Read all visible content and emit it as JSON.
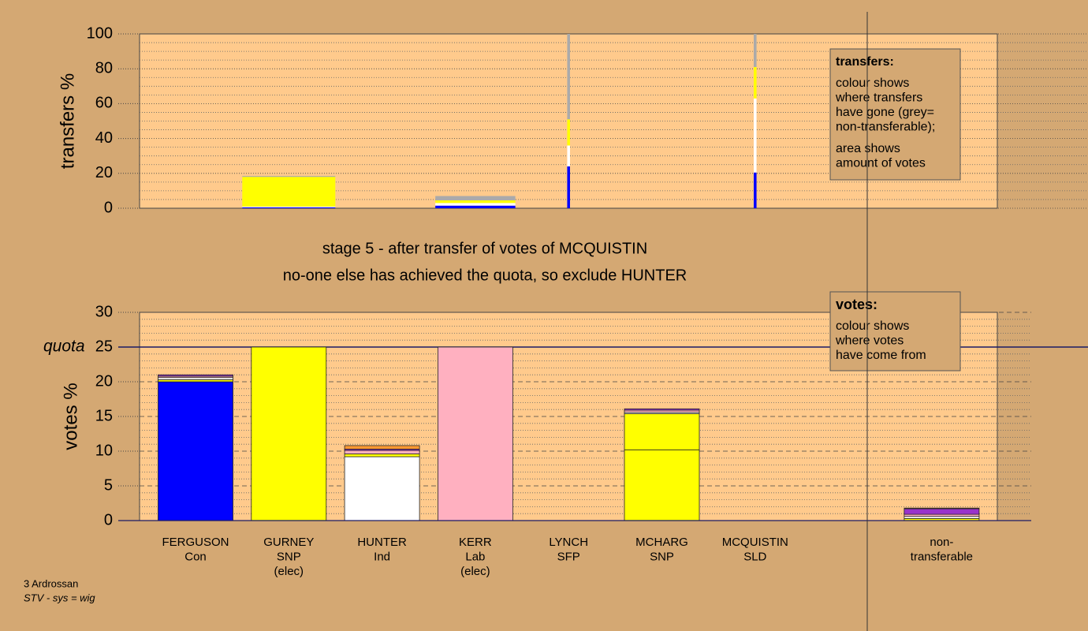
{
  "chart_data": [
    {
      "type": "bar",
      "ylabel": "transfers %",
      "ylim": [
        0,
        100
      ],
      "yticks": [
        0,
        20,
        40,
        60,
        80,
        100
      ],
      "minor_yticks": [
        5,
        10,
        15,
        25,
        30,
        35,
        45,
        50,
        55,
        65,
        70,
        75,
        85,
        90,
        95
      ],
      "widths": [
        0,
        1.0,
        0,
        0.86,
        0.03,
        0,
        0.03,
        null,
        0
      ],
      "series": [
        {
          "color": "#0000ff",
          "values": [
            0,
            0.5,
            0,
            1.5,
            24,
            0,
            20.5,
            null,
            0
          ]
        },
        {
          "color": "#ffffff",
          "values": [
            0,
            0.5,
            0,
            1.5,
            12,
            0,
            42.5,
            null,
            0
          ]
        },
        {
          "color": "#ffff00",
          "values": [
            0,
            17,
            0,
            1.5,
            15,
            0,
            18,
            null,
            0
          ]
        },
        {
          "color": "#aaaaaa",
          "values": [
            0,
            0.5,
            0,
            2.5,
            49,
            0,
            19,
            null,
            0
          ]
        }
      ],
      "note": {
        "title": "transfers:",
        "paragraphs": [
          [
            "colour shows",
            "where transfers",
            "have gone (grey=",
            "non-transferable);"
          ],
          [
            "area shows",
            "amount of votes"
          ]
        ]
      }
    },
    {
      "type": "bar",
      "title": [
        "stage 5 - after transfer of votes of MCQUISTIN",
        "no-one else has achieved the quota, so exclude HUNTER"
      ],
      "ylabel": "votes %",
      "ylim": [
        0,
        30
      ],
      "yticks": [
        0,
        5,
        10,
        15,
        20,
        25,
        30
      ],
      "minor_yticks": [
        1,
        2,
        3,
        4,
        6,
        7,
        8,
        9,
        11,
        12,
        13,
        14,
        16,
        17,
        18,
        19,
        21,
        22,
        23,
        24,
        26,
        27,
        28,
        29
      ],
      "quota": {
        "label": "quota",
        "value": 25
      },
      "categories": [
        [
          "FERGUSON",
          "Con"
        ],
        [
          "GURNEY",
          "SNP",
          "(elec)"
        ],
        [
          "HUNTER",
          "Ind"
        ],
        [
          "KERR",
          "Lab",
          "(elec)"
        ],
        [
          "LYNCH",
          "SFP"
        ],
        [
          "MCHARG",
          "SNP"
        ],
        [
          "MCQUISTIN",
          "SLD"
        ],
        null,
        [
          "non-",
          "transferable"
        ]
      ],
      "series": [
        {
          "color": "#0000ff",
          "values": [
            20,
            0,
            0,
            0,
            0,
            0,
            0,
            null,
            0
          ]
        },
        {
          "color": "#ffff00",
          "values": [
            0,
            25,
            0,
            0,
            0,
            10.2,
            0,
            null,
            0
          ]
        },
        {
          "color": "#ffffff",
          "values": [
            0,
            0,
            9.2,
            0,
            0,
            0,
            0,
            null,
            0
          ]
        },
        {
          "color": "#ffb0c0",
          "values": [
            0,
            0,
            0,
            25,
            0,
            0,
            0,
            null,
            0
          ]
        },
        {
          "color": "#ffff00",
          "values": [
            0.3,
            0,
            0.4,
            0,
            0,
            5.2,
            0,
            null,
            0.3
          ]
        },
        {
          "color": "#ffffff",
          "values": [
            0.3,
            0,
            0,
            0,
            0,
            0.2,
            0,
            null,
            0.3
          ]
        },
        {
          "color": "#ffb0c0",
          "values": [
            0.2,
            0,
            0.5,
            0,
            0,
            0.3,
            0,
            null,
            0.3
          ]
        },
        {
          "color": "#9933cc",
          "values": [
            0.2,
            0,
            0.2,
            0,
            0,
            0.2,
            0,
            null,
            0.8
          ]
        },
        {
          "color": "#ff9933",
          "values": [
            0,
            0,
            0.5,
            0,
            0,
            0,
            0,
            null,
            0.1
          ]
        }
      ],
      "note": {
        "title": "votes:",
        "paragraphs": [
          [
            "colour shows",
            "where votes",
            "have come from"
          ]
        ]
      }
    }
  ],
  "footer": [
    "3 Ardrossan",
    "STV - sys = wig"
  ]
}
